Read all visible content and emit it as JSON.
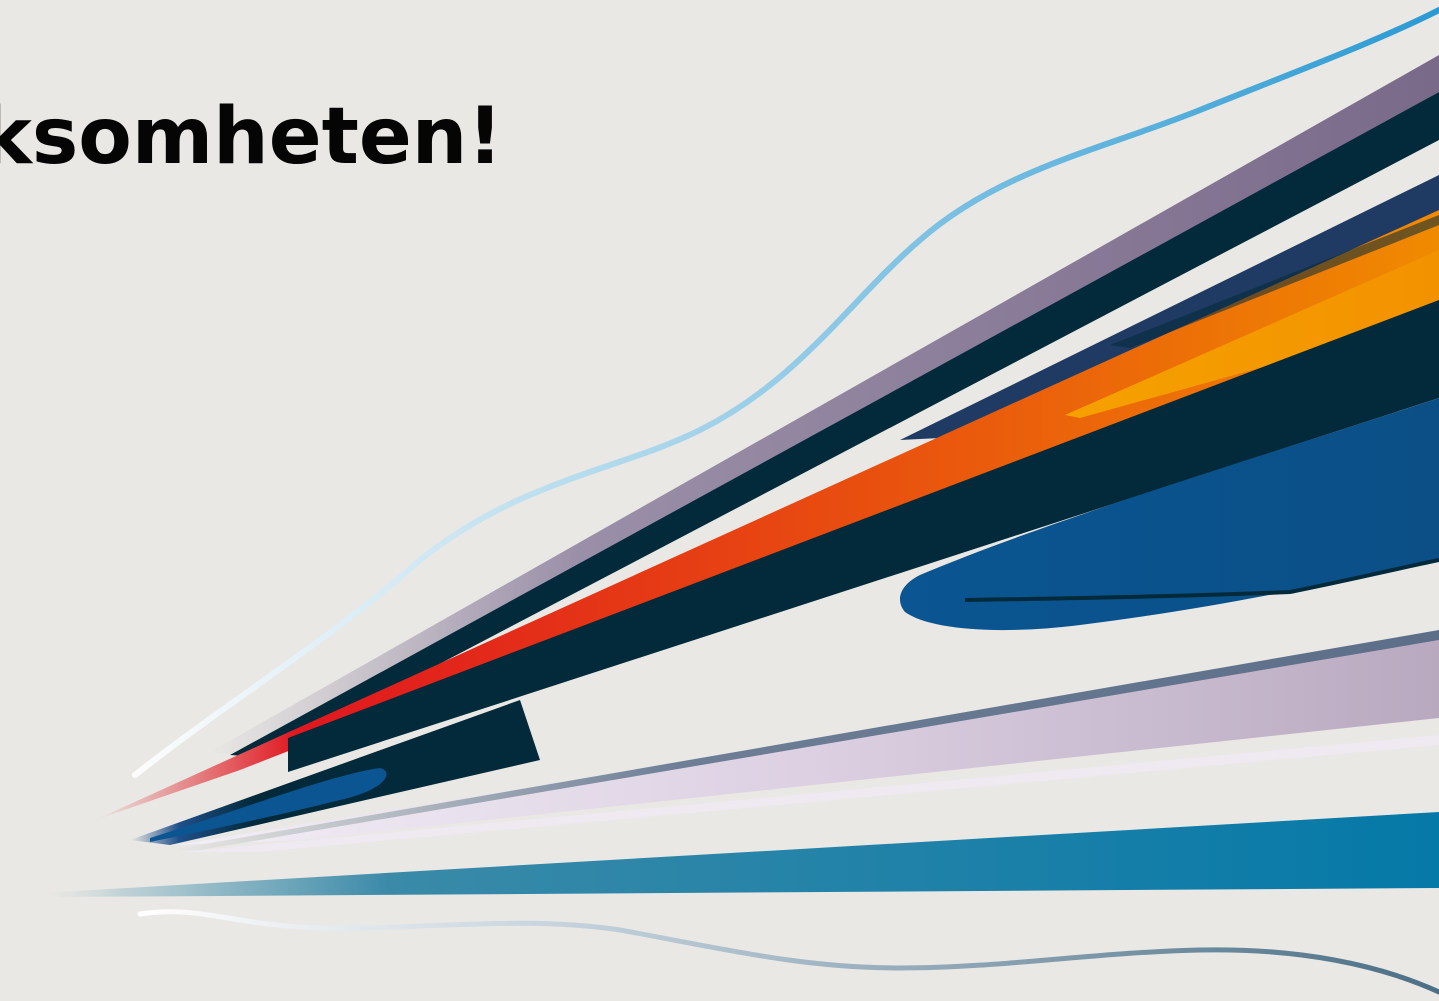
{
  "slide": {
    "title": "ksomheten!",
    "background_color": "#e9e8e4",
    "title_color": "#050505"
  },
  "graphic": {
    "colors": {
      "light_blue": "#4aa7d6",
      "mauve": "#7a6a8a",
      "dark_navy": "#032a3a",
      "navy": "#1f3b63",
      "orange": "#f08a00",
      "red": "#e0171f",
      "blue": "#0a5592",
      "teal": "#0579a8",
      "lavender": "#d9cde0"
    }
  }
}
